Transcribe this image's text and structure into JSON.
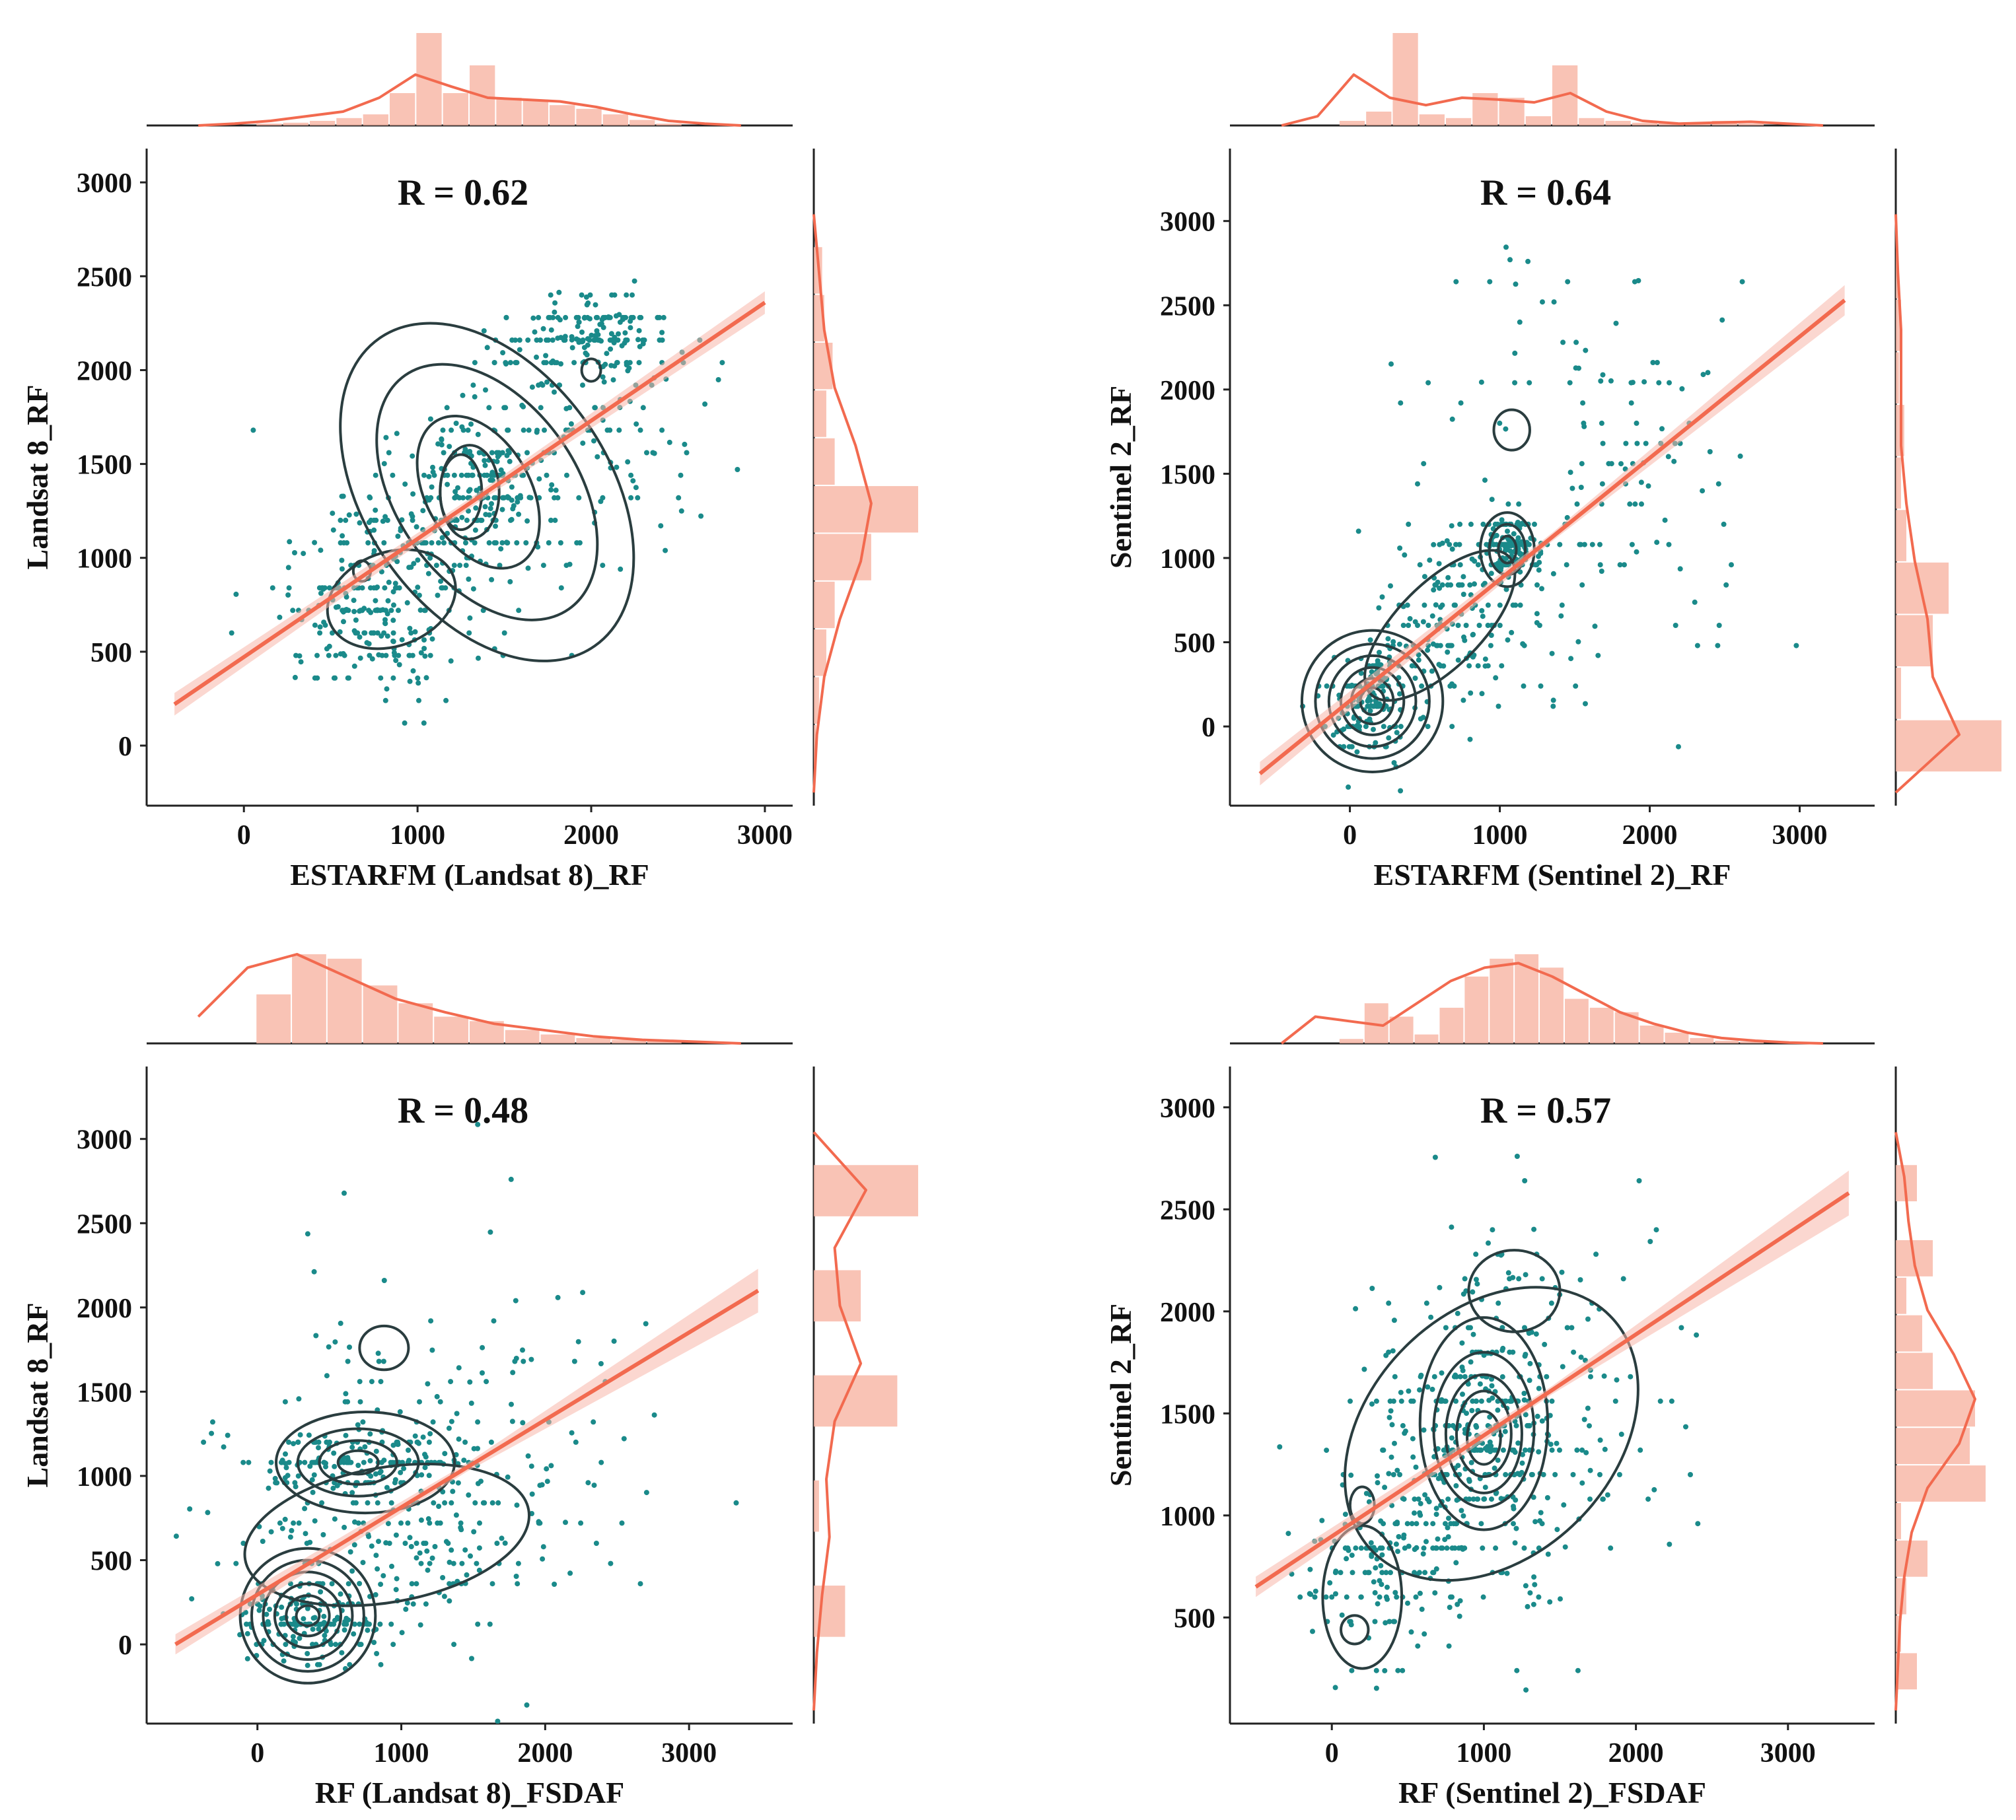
{
  "colors": {
    "scatter": "#1a8a8a",
    "regression": "#f26a4f",
    "ci_band": "#f7b7aa",
    "histogram": "#f8b8a8",
    "kde_line": "#f26a4f",
    "contour": "#2a3d3f",
    "axis": "#222222"
  },
  "chart_data": [
    {
      "type": "scatter",
      "panel": "top-left",
      "title": "R = 0.62",
      "xlabel": "ESTARFM (Landsat 8)_RF",
      "ylabel": "Landsat 8_RF",
      "xlim": [
        -560,
        3160
      ],
      "ylim": [
        -320,
        3180
      ],
      "xticks": [
        0,
        1000,
        2000,
        3000
      ],
      "yticks": [
        0,
        500,
        1000,
        1500,
        2000,
        2500,
        3000
      ],
      "xtick_labels": [
        "0",
        "1000",
        "2000",
        "3000"
      ],
      "ytick_labels": [
        "0",
        "500",
        "1000",
        "1500",
        "2000",
        "2500",
        "3000"
      ],
      "regression": {
        "x": [
          -400,
          3000
        ],
        "y": [
          220,
          2360
        ],
        "band_halfwidth": [
          60,
          25,
          60
        ]
      },
      "clusters": [
        {
          "cx": 1350,
          "cy": 1350,
          "sx": 180,
          "sy": 180
        },
        {
          "cx": 1800,
          "cy": 1650,
          "sx": 350,
          "sy": 350
        },
        {
          "cx": 2000,
          "cy": 2200,
          "sx": 250,
          "sy": 120
        },
        {
          "cx": 700,
          "cy": 650,
          "sx": 250,
          "sy": 200
        },
        {
          "cx": 1000,
          "cy": 1000,
          "sx": 300,
          "sy": 250
        }
      ],
      "contours": [
        {
          "cx": 1400,
          "cy": 1350,
          "rx": 700,
          "ry": 1000,
          "rot": -35
        },
        {
          "cx": 1400,
          "cy": 1350,
          "rx": 520,
          "ry": 760,
          "rot": -35
        },
        {
          "cx": 1350,
          "cy": 1350,
          "rx": 300,
          "ry": 440,
          "rot": -30
        },
        {
          "cx": 850,
          "cy": 780,
          "rx": 380,
          "ry": 250,
          "rot": -20
        },
        {
          "cx": 1250,
          "cy": 1350,
          "rx": 120,
          "ry": 200,
          "rot": 0
        },
        {
          "cx": 1300,
          "cy": 1350,
          "rx": 170,
          "ry": 250,
          "rot": 0
        },
        {
          "cx": 2000,
          "cy": 2000,
          "rx": 55,
          "ry": 60,
          "rot": 0
        },
        {
          "cx": 680,
          "cy": 930,
          "rx": 50,
          "ry": 55,
          "rot": 0
        }
      ],
      "top_hist": [
        0.02,
        0.03,
        0.05,
        0.08,
        0.12,
        0.35,
        1.0,
        0.35,
        0.65,
        0.3,
        0.28,
        0.22,
        0.18,
        0.12,
        0.06,
        0.02
      ],
      "top_kde": [
        0.0,
        0.02,
        0.05,
        0.1,
        0.15,
        0.3,
        0.55,
        0.42,
        0.3,
        0.28,
        0.26,
        0.2,
        0.12,
        0.05,
        0.02,
        0.0
      ],
      "right_hist": [
        0.08,
        0.1,
        0.18,
        0.12,
        0.2,
        1.0,
        0.55,
        0.2,
        0.12,
        0.05,
        0.02
      ],
      "right_kde": [
        0.0,
        0.05,
        0.1,
        0.2,
        0.4,
        0.55,
        0.45,
        0.25,
        0.1,
        0.03,
        0.0
      ]
    },
    {
      "type": "scatter",
      "panel": "top-right",
      "title": "R = 0.64",
      "xlabel": "ESTARFM (Sentinel 2)_RF",
      "ylabel": "Sentinel 2_RF",
      "xlim": [
        -800,
        3500
      ],
      "ylim": [
        -470,
        3430
      ],
      "xticks": [
        0,
        1000,
        2000,
        3000
      ],
      "yticks": [
        0,
        500,
        1000,
        1500,
        2000,
        2500,
        3000
      ],
      "xtick_labels": [
        "0",
        "1000",
        "2000",
        "3000"
      ],
      "ytick_labels": [
        "0",
        "500",
        "1000",
        "1500",
        "2000",
        "2500",
        "3000"
      ],
      "regression": {
        "x": [
          -600,
          3300
        ],
        "y": [
          -280,
          2530
        ],
        "band_halfwidth": [
          70,
          25,
          90
        ]
      },
      "clusters": [
        {
          "cx": 150,
          "cy": 150,
          "sx": 150,
          "sy": 150
        },
        {
          "cx": 1050,
          "cy": 1050,
          "sx": 90,
          "sy": 90
        },
        {
          "cx": 700,
          "cy": 600,
          "sx": 250,
          "sy": 250
        },
        {
          "cx": 1600,
          "cy": 1500,
          "sx": 550,
          "sy": 650
        }
      ],
      "contours": [
        {
          "cx": 150,
          "cy": 150,
          "rx": 470,
          "ry": 420,
          "rot": 0
        },
        {
          "cx": 150,
          "cy": 150,
          "rx": 380,
          "ry": 340,
          "rot": 0
        },
        {
          "cx": 150,
          "cy": 150,
          "rx": 290,
          "ry": 270,
          "rot": 0
        },
        {
          "cx": 150,
          "cy": 150,
          "rx": 210,
          "ry": 200,
          "rot": 0
        },
        {
          "cx": 150,
          "cy": 150,
          "rx": 140,
          "ry": 135,
          "rot": 0
        },
        {
          "cx": 150,
          "cy": 150,
          "rx": 80,
          "ry": 80,
          "rot": 0
        },
        {
          "cx": 1050,
          "cy": 1050,
          "rx": 180,
          "ry": 220,
          "rot": 0
        },
        {
          "cx": 1050,
          "cy": 1050,
          "rx": 120,
          "ry": 150,
          "rot": 0
        },
        {
          "cx": 1050,
          "cy": 1050,
          "rx": 60,
          "ry": 80,
          "rot": 0
        },
        {
          "cx": 600,
          "cy": 600,
          "rx": 650,
          "ry": 250,
          "rot": -45
        },
        {
          "cx": 1080,
          "cy": 1760,
          "rx": 120,
          "ry": 120,
          "rot": 0
        }
      ],
      "top_hist": [
        0.05,
        0.15,
        1.0,
        0.12,
        0.08,
        0.35,
        0.3,
        0.1,
        0.65,
        0.08,
        0.05,
        0.03,
        0.03,
        0.02,
        0.05,
        0.02
      ],
      "top_kde": [
        0.0,
        0.1,
        0.55,
        0.3,
        0.22,
        0.3,
        0.28,
        0.25,
        0.35,
        0.15,
        0.05,
        0.02,
        0.03,
        0.04,
        0.02,
        0.0
      ],
      "right_hist": [
        0.02,
        0.05,
        0.03,
        0.08,
        0.05,
        0.1,
        0.5,
        0.35,
        0.05,
        1.0
      ],
      "right_kde": [
        0.0,
        0.02,
        0.05,
        0.05,
        0.05,
        0.1,
        0.18,
        0.3,
        0.35,
        0.6,
        0.0
      ]
    },
    {
      "type": "scatter",
      "panel": "bottom-left",
      "title": "R = 0.48",
      "xlabel": "RF (Landsat 8)_FSDAF",
      "ylabel": "Landsat 8_RF",
      "xlim": [
        -770,
        3720
      ],
      "ylim": [
        -470,
        3430
      ],
      "xticks": [
        0,
        1000,
        2000,
        3000
      ],
      "yticks": [
        0,
        500,
        1000,
        1500,
        2000,
        2500,
        3000
      ],
      "xtick_labels": [
        "0",
        "1000",
        "2000",
        "3000"
      ],
      "ytick_labels": [
        "0",
        "500",
        "1000",
        "1500",
        "2000",
        "2500",
        "3000"
      ],
      "regression": {
        "x": [
          -570,
          3480
        ],
        "y": [
          0,
          2100
        ],
        "band_halfwidth": [
          60,
          25,
          130
        ]
      },
      "clusters": [
        {
          "cx": 350,
          "cy": 150,
          "sx": 250,
          "sy": 120
        },
        {
          "cx": 800,
          "cy": 1070,
          "sx": 400,
          "sy": 90
        },
        {
          "cx": 900,
          "cy": 600,
          "sx": 500,
          "sy": 300
        },
        {
          "cx": 1300,
          "cy": 1100,
          "sx": 700,
          "sy": 600
        }
      ],
      "contours": [
        {
          "cx": 350,
          "cy": 170,
          "rx": 470,
          "ry": 400,
          "rot": 0
        },
        {
          "cx": 350,
          "cy": 170,
          "rx": 390,
          "ry": 330,
          "rot": 0
        },
        {
          "cx": 350,
          "cy": 170,
          "rx": 310,
          "ry": 260,
          "rot": 0
        },
        {
          "cx": 350,
          "cy": 170,
          "rx": 230,
          "ry": 190,
          "rot": 0
        },
        {
          "cx": 350,
          "cy": 170,
          "rx": 150,
          "ry": 120,
          "rot": 0
        },
        {
          "cx": 350,
          "cy": 170,
          "rx": 80,
          "ry": 60,
          "rot": 0
        },
        {
          "cx": 750,
          "cy": 1080,
          "rx": 620,
          "ry": 300,
          "rot": 0
        },
        {
          "cx": 700,
          "cy": 1080,
          "rx": 420,
          "ry": 200,
          "rot": 0
        },
        {
          "cx": 700,
          "cy": 1080,
          "rx": 270,
          "ry": 130,
          "rot": 0
        },
        {
          "cx": 700,
          "cy": 1080,
          "rx": 140,
          "ry": 70,
          "rot": 0
        },
        {
          "cx": 880,
          "cy": 1760,
          "rx": 170,
          "ry": 130,
          "rot": 0
        },
        {
          "cx": 900,
          "cy": 650,
          "rx": 1000,
          "ry": 400,
          "rot": -10
        }
      ],
      "top_hist": [
        0.55,
        1.0,
        0.95,
        0.65,
        0.45,
        0.3,
        0.25,
        0.15,
        0.1,
        0.06,
        0.04,
        0.03
      ],
      "top_kde": [
        0.3,
        0.85,
        1.0,
        0.75,
        0.5,
        0.35,
        0.22,
        0.15,
        0.08,
        0.04,
        0.02,
        0.0
      ],
      "right_hist": [
        1.0,
        0.0,
        0.45,
        0.0,
        0.8,
        0.0,
        0.05,
        0.0,
        0.3,
        0.0
      ],
      "right_kde": [
        0.0,
        0.5,
        0.2,
        0.25,
        0.45,
        0.2,
        0.12,
        0.15,
        0.08,
        0.03,
        0.0
      ]
    },
    {
      "type": "scatter",
      "panel": "bottom-right",
      "title": "R = 0.57",
      "xlabel": "RF (Sentinel 2)_FSDAF",
      "ylabel": "Sentinel 2_RF",
      "xlim": [
        -670,
        3570
      ],
      "ylim": [
        -20,
        3200
      ],
      "xticks": [
        0,
        1000,
        2000,
        3000
      ],
      "yticks": [
        500,
        1000,
        1500,
        2000,
        2500,
        3000
      ],
      "xtick_labels": [
        "0",
        "1000",
        "2000",
        "3000"
      ],
      "ytick_labels": [
        "500",
        "1000",
        "1500",
        "2000",
        "2500",
        "3000"
      ],
      "regression": {
        "x": [
          -500,
          3400
        ],
        "y": [
          650,
          2580
        ],
        "band_halfwidth": [
          50,
          20,
          110
        ]
      },
      "clusters": [
        {
          "cx": 1000,
          "cy": 1400,
          "sx": 250,
          "sy": 180
        },
        {
          "cx": 1200,
          "cy": 1700,
          "sx": 450,
          "sy": 450
        },
        {
          "cx": 400,
          "cy": 750,
          "sx": 300,
          "sy": 250
        },
        {
          "cx": 1000,
          "cy": 1100,
          "sx": 500,
          "sy": 300
        }
      ],
      "contours": [
        {
          "cx": 1050,
          "cy": 1400,
          "rx": 1100,
          "ry": 600,
          "rot": -45
        },
        {
          "cx": 1000,
          "cy": 1450,
          "rx": 420,
          "ry": 520,
          "rot": 0
        },
        {
          "cx": 1000,
          "cy": 1420,
          "rx": 330,
          "ry": 380,
          "rot": 0
        },
        {
          "cx": 1000,
          "cy": 1400,
          "rx": 250,
          "ry": 290,
          "rot": 0
        },
        {
          "cx": 1000,
          "cy": 1400,
          "rx": 180,
          "ry": 210,
          "rot": 0
        },
        {
          "cx": 1000,
          "cy": 1380,
          "rx": 110,
          "ry": 130,
          "rot": 0
        },
        {
          "cx": 200,
          "cy": 600,
          "rx": 260,
          "ry": 350,
          "rot": 0
        },
        {
          "cx": 150,
          "cy": 440,
          "rx": 90,
          "ry": 70,
          "rot": 0
        },
        {
          "cx": 200,
          "cy": 1050,
          "rx": 80,
          "ry": 90,
          "rot": 0
        },
        {
          "cx": 1200,
          "cy": 2100,
          "rx": 300,
          "ry": 200,
          "rot": 0
        }
      ],
      "top_hist": [
        0.05,
        0.45,
        0.3,
        0.1,
        0.4,
        0.75,
        0.95,
        1.0,
        0.85,
        0.5,
        0.4,
        0.35,
        0.2,
        0.12,
        0.06,
        0.03,
        0.02
      ],
      "top_kde": [
        0.0,
        0.3,
        0.25,
        0.2,
        0.45,
        0.7,
        0.85,
        0.9,
        0.75,
        0.55,
        0.35,
        0.22,
        0.12,
        0.06,
        0.03,
        0.01,
        0.0
      ],
      "right_hist": [
        0.2,
        0.0,
        0.35,
        0.1,
        0.25,
        0.35,
        0.75,
        0.7,
        0.85,
        0.05,
        0.3,
        0.1,
        0.05,
        0.2
      ],
      "right_kde": [
        0.0,
        0.08,
        0.12,
        0.18,
        0.3,
        0.55,
        0.75,
        0.6,
        0.3,
        0.15,
        0.08,
        0.04,
        0.02,
        0.0
      ]
    }
  ]
}
